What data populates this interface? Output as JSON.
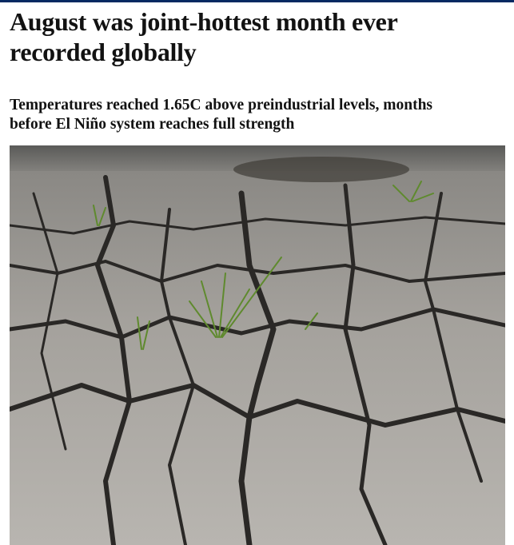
{
  "article": {
    "headline": "August was joint-hottest month ever recorded globally",
    "standfirst": "Temperatures reached 1.65C above preindustrial levels, months before El Niño system reaches full strength"
  }
}
